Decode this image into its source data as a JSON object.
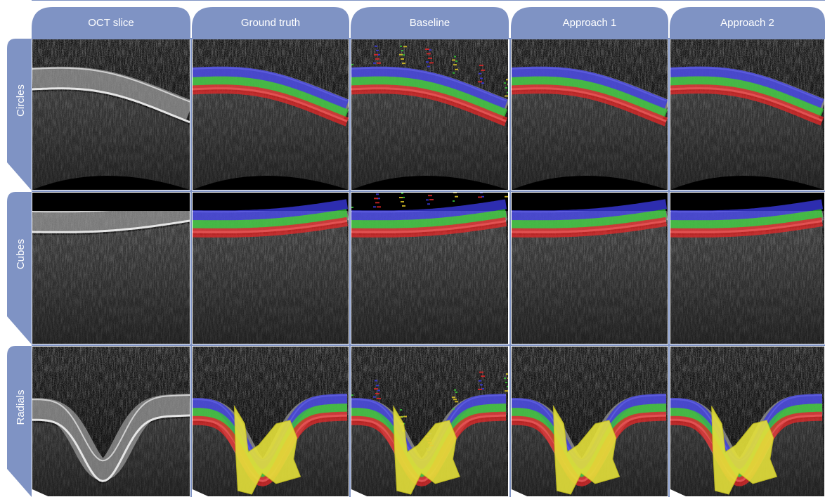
{
  "columns": [
    "OCT slice",
    "Ground truth",
    "Baseline",
    "Approach 1",
    "Approach 2"
  ],
  "rows": [
    "Circles",
    "Cubes",
    "Radials"
  ]
}
